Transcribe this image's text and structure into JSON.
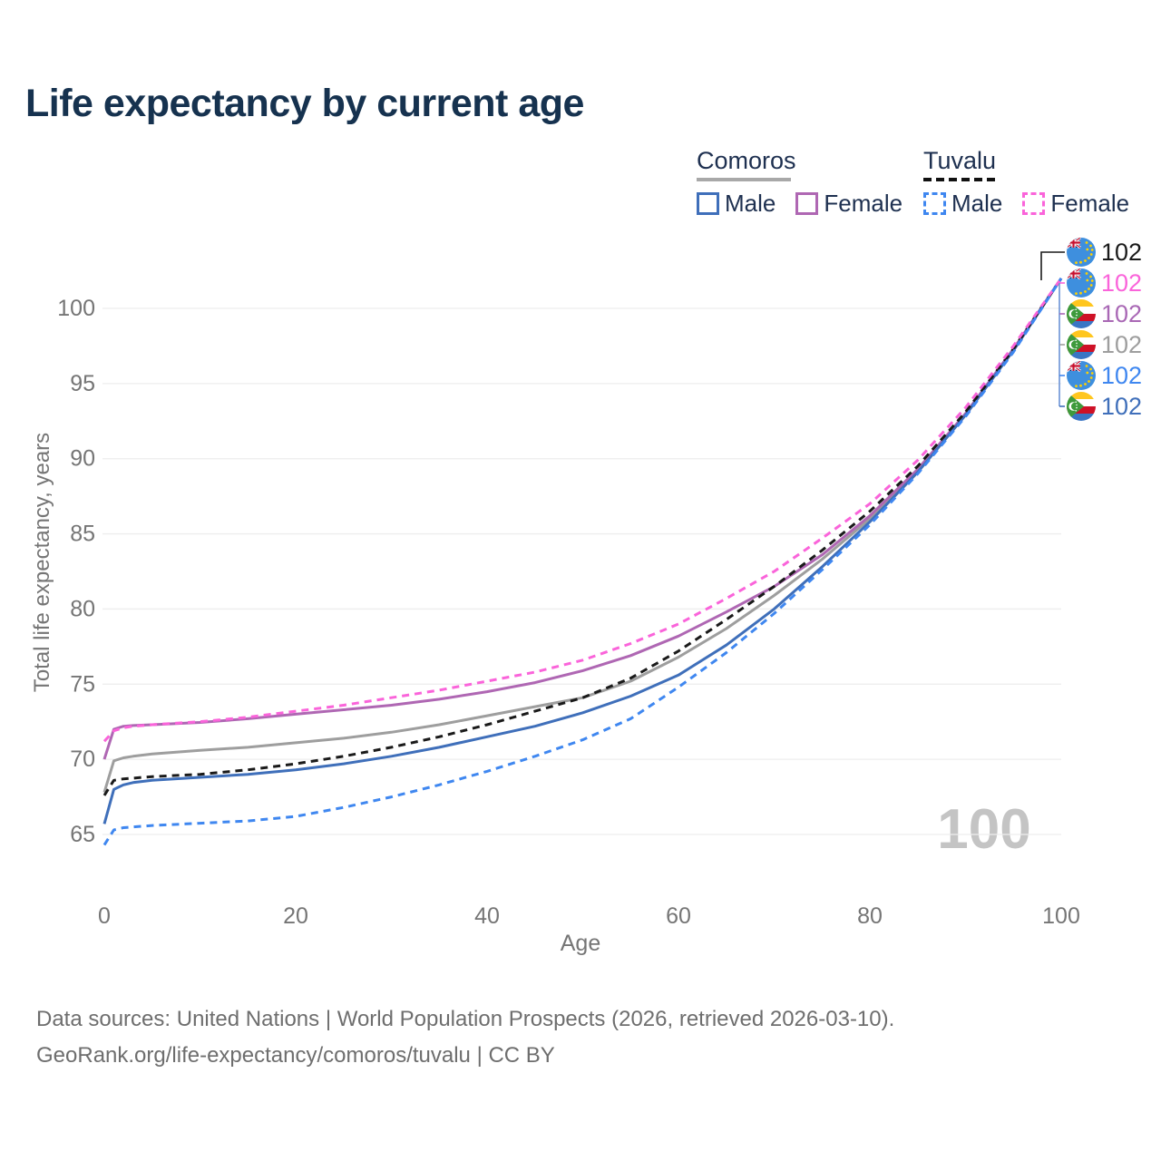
{
  "title": "Life expectancy by current age",
  "legend": {
    "groups": [
      {
        "name": "Comoros",
        "underline": "solid",
        "items": [
          {
            "label": "Male",
            "color": "#3f6fba",
            "dashed": false
          },
          {
            "label": "Female",
            "color": "#af67b3",
            "dashed": false
          }
        ]
      },
      {
        "name": "Tuvalu",
        "underline": "dashed",
        "items": [
          {
            "label": "Male",
            "color": "#3f87f0",
            "dashed": true
          },
          {
            "label": "Female",
            "color": "#fa64da",
            "dashed": true
          }
        ]
      }
    ]
  },
  "chart_data": {
    "type": "line",
    "title": "Life expectancy by current age",
    "xlabel": "Age",
    "ylabel": "Total life expectancy, years",
    "xlim": [
      0,
      100
    ],
    "ylim": [
      63.5,
      103
    ],
    "x_ticks": [
      0,
      20,
      40,
      60,
      80,
      100
    ],
    "y_ticks": [
      65,
      70,
      75,
      80,
      85,
      90,
      95,
      100
    ],
    "grid": "horizontal",
    "legend_position": "top-right",
    "x": [
      0,
      1,
      2,
      3,
      5,
      10,
      15,
      20,
      25,
      30,
      35,
      40,
      45,
      50,
      55,
      60,
      65,
      70,
      75,
      80,
      85,
      90,
      95,
      100
    ],
    "series": [
      {
        "name": "Comoros Total",
        "country": "Comoros",
        "sex": "Total",
        "color": "#9e9e9e",
        "dash": false,
        "values": [
          67.8,
          69.9,
          70.1,
          70.2,
          70.35,
          70.6,
          70.8,
          71.1,
          71.4,
          71.8,
          72.3,
          72.9,
          73.5,
          74.1,
          75.2,
          76.8,
          78.7,
          80.9,
          83.3,
          86.0,
          89.2,
          93.0,
          97.2,
          102
        ]
      },
      {
        "name": "Comoros Female",
        "country": "Comoros",
        "sex": "Female",
        "color": "#af67b3",
        "dash": false,
        "values": [
          70.0,
          72.0,
          72.2,
          72.25,
          72.3,
          72.45,
          72.7,
          73.0,
          73.3,
          73.6,
          74.0,
          74.5,
          75.1,
          75.9,
          76.9,
          78.2,
          79.8,
          81.5,
          83.6,
          86.2,
          89.3,
          93.0,
          97.3,
          102
        ]
      },
      {
        "name": "Comoros Male",
        "country": "Comoros",
        "sex": "Male",
        "color": "#3f6fba",
        "dash": false,
        "values": [
          65.7,
          68.0,
          68.3,
          68.45,
          68.6,
          68.8,
          69.0,
          69.3,
          69.7,
          70.2,
          70.8,
          71.5,
          72.2,
          73.1,
          74.2,
          75.6,
          77.6,
          80.0,
          82.8,
          85.8,
          89.1,
          92.9,
          97.2,
          102
        ]
      },
      {
        "name": "Tuvalu Total",
        "country": "Tuvalu",
        "sex": "Total",
        "color": "#1a1a1a",
        "dash": true,
        "values": [
          67.6,
          68.6,
          68.7,
          68.75,
          68.85,
          69.0,
          69.3,
          69.7,
          70.2,
          70.8,
          71.5,
          72.3,
          73.2,
          74.1,
          75.4,
          77.2,
          79.3,
          81.5,
          83.9,
          86.5,
          89.5,
          93.1,
          97.3,
          102
        ]
      },
      {
        "name": "Tuvalu Female",
        "country": "Tuvalu",
        "sex": "Female",
        "color": "#fa64da",
        "dash": true,
        "values": [
          71.2,
          71.9,
          72.1,
          72.2,
          72.3,
          72.5,
          72.8,
          73.2,
          73.6,
          74.1,
          74.6,
          75.2,
          75.8,
          76.6,
          77.7,
          79.0,
          80.7,
          82.5,
          84.7,
          87.0,
          89.9,
          93.4,
          97.5,
          102
        ]
      },
      {
        "name": "Tuvalu Male",
        "country": "Tuvalu",
        "sex": "Male",
        "color": "#3f87f0",
        "dash": true,
        "values": [
          64.3,
          65.3,
          65.45,
          65.5,
          65.6,
          65.75,
          65.9,
          66.2,
          66.8,
          67.5,
          68.3,
          69.2,
          70.2,
          71.3,
          72.7,
          74.8,
          77.1,
          79.7,
          82.6,
          85.6,
          89.0,
          92.8,
          97.1,
          102
        ]
      }
    ]
  },
  "end_labels": [
    {
      "flag": "tuvalu",
      "series": "Tuvalu Total",
      "value": "102",
      "color": "#1a1a1a"
    },
    {
      "flag": "tuvalu",
      "series": "Tuvalu Female",
      "value": "102",
      "color": "#fa64da"
    },
    {
      "flag": "comoros",
      "series": "Comoros Female",
      "value": "102",
      "color": "#a968b5"
    },
    {
      "flag": "comoros",
      "series": "Comoros Total",
      "value": "102",
      "color": "#9e9e9e"
    },
    {
      "flag": "tuvalu",
      "series": "Tuvalu Male",
      "value": "102",
      "color": "#3f87f0"
    },
    {
      "flag": "comoros",
      "series": "Comoros Male",
      "value": "102",
      "color": "#3f6fba"
    }
  ],
  "watermark": "100",
  "footer": {
    "line1": "Data sources: United Nations | World Population Prospects (2026, retrieved 2026-03-10).",
    "line2": "GeoRank.org/life-expectancy/comoros/tuvalu | CC BY"
  }
}
